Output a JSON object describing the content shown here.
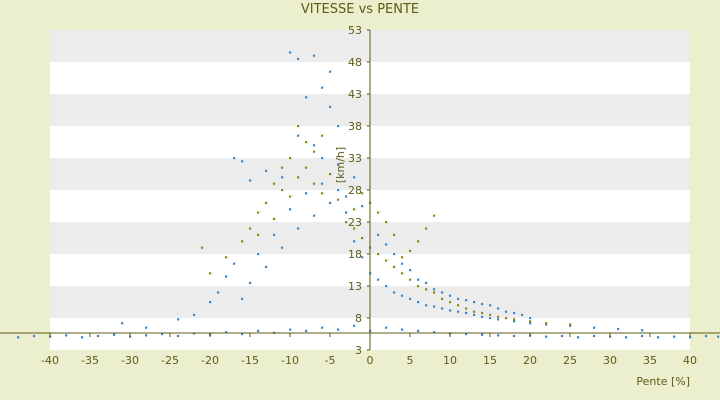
{
  "chart_data": {
    "type": "scatter",
    "title": "VITESSE vs PENTE",
    "xlabel": "Pente [%]",
    "ylabel": "[km/h]",
    "xlim": [
      -40,
      40
    ],
    "ylim": [
      3,
      53
    ],
    "xticks": [
      -40,
      -35,
      -30,
      -25,
      -20,
      -15,
      -10,
      -5,
      0,
      5,
      10,
      15,
      20,
      25,
      30,
      35,
      40
    ],
    "yticks": [
      3,
      8,
      13,
      18,
      23,
      28,
      33,
      38,
      43,
      48,
      53
    ],
    "grid": "horizontal alternating bands",
    "legend": "none",
    "colors": {
      "background": "#ecefcd",
      "plot_band_light": "#ffffff",
      "plot_band_dark": "#ececec",
      "axis": "#5e5a17",
      "series_blue": "#3b87c6",
      "series_olive": "#8a8c12"
    },
    "series": [
      {
        "color": "#3b87c6",
        "points": [
          [
            -44,
            5.0
          ],
          [
            -42,
            5.2
          ],
          [
            -40,
            5.1
          ],
          [
            -38,
            5.3
          ],
          [
            -36,
            5.0
          ],
          [
            -34,
            5.2
          ],
          [
            -32,
            5.4
          ],
          [
            -30,
            5.1
          ],
          [
            -28,
            5.3
          ],
          [
            -26,
            5.5
          ],
          [
            -24,
            5.2
          ],
          [
            -22,
            5.6
          ],
          [
            -20,
            5.4
          ],
          [
            -18,
            5.8
          ],
          [
            -16,
            5.5
          ],
          [
            -14,
            6.0
          ],
          [
            -12,
            5.7
          ],
          [
            -10,
            6.2
          ],
          [
            -8,
            6.0
          ],
          [
            -6,
            6.5
          ],
          [
            -4,
            6.2
          ],
          [
            -2,
            6.8
          ],
          [
            0,
            6.0
          ],
          [
            2,
            6.5
          ],
          [
            4,
            6.2
          ],
          [
            6,
            6.0
          ],
          [
            8,
            5.8
          ],
          [
            10,
            5.6
          ],
          [
            12,
            5.5
          ],
          [
            14,
            5.4
          ],
          [
            16,
            5.3
          ],
          [
            18,
            5.2
          ],
          [
            20,
            5.3
          ],
          [
            22,
            5.1
          ],
          [
            24,
            5.2
          ],
          [
            26,
            5.0
          ],
          [
            28,
            5.2
          ],
          [
            30,
            5.1
          ],
          [
            32,
            5.0
          ],
          [
            34,
            5.2
          ],
          [
            36,
            5.0
          ],
          [
            38,
            5.1
          ],
          [
            40,
            5.0
          ],
          [
            42,
            5.2
          ],
          [
            44,
            5.1
          ],
          [
            -31,
            7.2
          ],
          [
            -28,
            6.5
          ],
          [
            -24,
            7.8
          ],
          [
            -22,
            8.5
          ],
          [
            -20,
            10.5
          ],
          [
            -19,
            12.0
          ],
          [
            -18,
            14.5
          ],
          [
            -17,
            16.5
          ],
          [
            -16,
            11.0
          ],
          [
            -15,
            13.5
          ],
          [
            -14,
            18.0
          ],
          [
            -13,
            16.0
          ],
          [
            -12,
            21.0
          ],
          [
            -11,
            19.0
          ],
          [
            -10,
            25.0
          ],
          [
            -9,
            22.0
          ],
          [
            -8,
            27.5
          ],
          [
            -7,
            24.0
          ],
          [
            -6,
            29.0
          ],
          [
            -5,
            26.0
          ],
          [
            -4,
            28.0
          ],
          [
            -3,
            24.5
          ],
          [
            -2,
            20.0
          ],
          [
            -1,
            17.5
          ],
          [
            0,
            15.0
          ],
          [
            1,
            14.0
          ],
          [
            2,
            13.0
          ],
          [
            3,
            12.0
          ],
          [
            4,
            11.5
          ],
          [
            5,
            11.0
          ],
          [
            6,
            10.5
          ],
          [
            7,
            10.0
          ],
          [
            8,
            9.8
          ],
          [
            9,
            9.5
          ],
          [
            10,
            9.2
          ],
          [
            11,
            9.0
          ],
          [
            12,
            8.8
          ],
          [
            13,
            8.5
          ],
          [
            14,
            8.2
          ],
          [
            15,
            8.0
          ],
          [
            16,
            7.8
          ],
          [
            18,
            7.5
          ],
          [
            20,
            7.2
          ],
          [
            22,
            7.0
          ],
          [
            25,
            6.8
          ],
          [
            28,
            6.5
          ],
          [
            31,
            6.3
          ],
          [
            34,
            6.1
          ],
          [
            -10,
            49.5
          ],
          [
            -9,
            48.5
          ],
          [
            -7,
            49.0
          ],
          [
            -5,
            46.5
          ],
          [
            -6,
            44.0
          ],
          [
            -8,
            42.5
          ],
          [
            -5,
            41.0
          ],
          [
            -4,
            38.0
          ],
          [
            -9,
            36.5
          ],
          [
            -7,
            35.0
          ],
          [
            -6,
            33.0
          ],
          [
            -4,
            32.0
          ],
          [
            -17,
            33.0
          ],
          [
            -16,
            32.5
          ],
          [
            -15,
            29.5
          ],
          [
            -13,
            31.0
          ],
          [
            -11,
            30.0
          ],
          [
            -2,
            30.0
          ],
          [
            -3,
            27.0
          ],
          [
            -1,
            25.5
          ],
          [
            1,
            21.0
          ],
          [
            2,
            19.5
          ],
          [
            3,
            18.0
          ],
          [
            4,
            16.5
          ],
          [
            5,
            15.5
          ],
          [
            6,
            14.0
          ],
          [
            7,
            13.5
          ],
          [
            8,
            12.5
          ],
          [
            9,
            12.0
          ],
          [
            10,
            11.5
          ],
          [
            11,
            11.0
          ],
          [
            12,
            10.8
          ],
          [
            13,
            10.5
          ],
          [
            14,
            10.2
          ],
          [
            15,
            10.0
          ],
          [
            16,
            9.5
          ],
          [
            17,
            9.0
          ],
          [
            18,
            8.8
          ],
          [
            19,
            8.5
          ],
          [
            20,
            8.0
          ]
        ]
      },
      {
        "color": "#8a8c12",
        "points": [
          [
            -16,
            20.0
          ],
          [
            -15,
            22.0
          ],
          [
            -14,
            24.5
          ],
          [
            -13,
            26.0
          ],
          [
            -12,
            23.5
          ],
          [
            -11,
            28.0
          ],
          [
            -10,
            27.0
          ],
          [
            -9,
            30.0
          ],
          [
            -8,
            31.5
          ],
          [
            -7,
            29.0
          ],
          [
            -6,
            27.5
          ],
          [
            -5,
            30.5
          ],
          [
            -4,
            26.5
          ],
          [
            -3,
            23.0
          ],
          [
            -2,
            22.0
          ],
          [
            -1,
            20.5
          ],
          [
            0,
            19.0
          ],
          [
            1,
            18.0
          ],
          [
            2,
            17.0
          ],
          [
            3,
            16.0
          ],
          [
            4,
            15.0
          ],
          [
            5,
            14.0
          ],
          [
            6,
            13.0
          ],
          [
            7,
            12.5
          ],
          [
            8,
            12.0
          ],
          [
            9,
            11.0
          ],
          [
            10,
            10.5
          ],
          [
            11,
            10.0
          ],
          [
            12,
            9.5
          ],
          [
            13,
            9.0
          ],
          [
            14,
            8.8
          ],
          [
            15,
            8.5
          ],
          [
            16,
            8.2
          ],
          [
            17,
            8.0
          ],
          [
            18,
            7.8
          ],
          [
            20,
            7.5
          ],
          [
            22,
            7.2
          ],
          [
            25,
            7.0
          ],
          [
            -9,
            38.0
          ],
          [
            -8,
            35.5
          ],
          [
            -7,
            34.0
          ],
          [
            -6,
            36.5
          ],
          [
            -10,
            33.0
          ],
          [
            -11,
            31.5
          ],
          [
            -12,
            29.0
          ],
          [
            -14,
            21.0
          ],
          [
            -18,
            17.5
          ],
          [
            -20,
            15.0
          ],
          [
            -21,
            19.0
          ],
          [
            8,
            24.0
          ],
          [
            7,
            22.0
          ],
          [
            6,
            20.0
          ],
          [
            5,
            18.5
          ],
          [
            4,
            17.5
          ],
          [
            3,
            21.0
          ],
          [
            2,
            23.0
          ],
          [
            1,
            24.5
          ],
          [
            0,
            26.0
          ],
          [
            -1,
            27.5
          ],
          [
            -2,
            25.0
          ]
        ]
      }
    ]
  }
}
